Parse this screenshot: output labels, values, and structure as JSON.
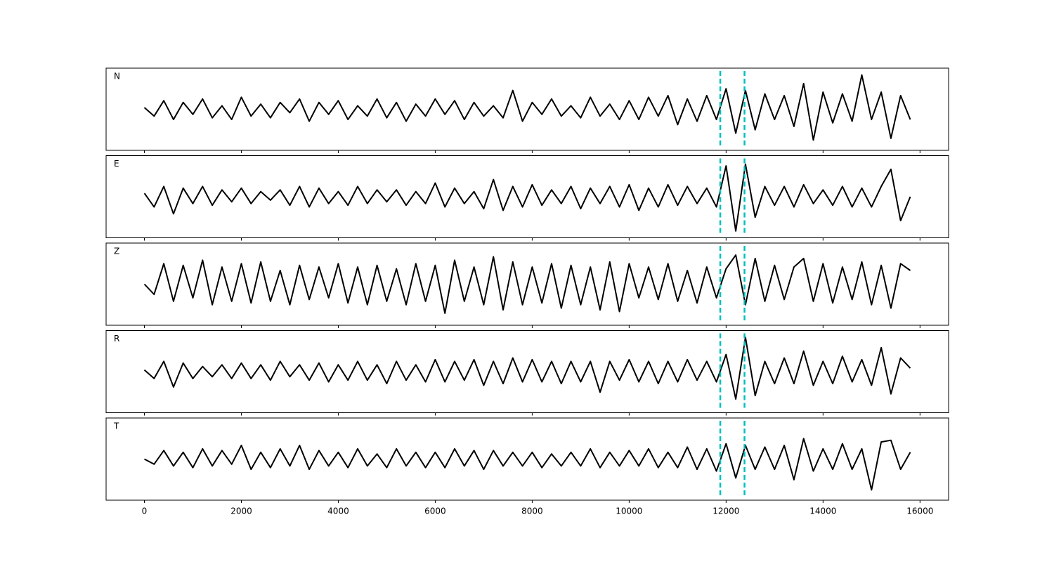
{
  "chart_data": {
    "type": "line",
    "layout": "stacked",
    "x": [
      0,
      200,
      400,
      600,
      800,
      1000,
      1200,
      1400,
      1600,
      1800,
      2000,
      2200,
      2400,
      2600,
      2800,
      3000,
      3200,
      3400,
      3600,
      3800,
      4000,
      4200,
      4400,
      4600,
      4800,
      5000,
      5200,
      5400,
      5600,
      5800,
      6000,
      6200,
      6400,
      6600,
      6800,
      7000,
      7200,
      7400,
      7600,
      7800,
      8000,
      8200,
      8400,
      8600,
      8800,
      9000,
      9200,
      9400,
      9600,
      9800,
      10000,
      10200,
      10400,
      10600,
      10800,
      11000,
      11200,
      11400,
      11600,
      11800,
      12000,
      12200,
      12400,
      12600,
      12800,
      13000,
      13200,
      13400,
      13600,
      13800,
      14000,
      14200,
      14400,
      14600,
      14800,
      15000,
      15200,
      15400,
      15600,
      15800
    ],
    "xlim": [
      -790,
      16590
    ],
    "xticks": [
      0,
      2000,
      4000,
      6000,
      8000,
      10000,
      12000,
      14000,
      16000
    ],
    "ylim": [
      -1.2,
      1.2
    ],
    "vlines": [
      11880,
      12380
    ],
    "vline_color": "#00bfbf",
    "series": [
      {
        "name": "N",
        "color": "#000000",
        "values": [
          0.05,
          -0.2,
          0.25,
          -0.3,
          0.2,
          -0.15,
          0.3,
          -0.25,
          0.1,
          -0.3,
          0.35,
          -0.2,
          0.15,
          -0.25,
          0.2,
          -0.1,
          0.3,
          -0.35,
          0.2,
          -0.15,
          0.25,
          -0.3,
          0.1,
          -0.2,
          0.3,
          -0.25,
          0.2,
          -0.35,
          0.15,
          -0.2,
          0.3,
          -0.15,
          0.25,
          -0.3,
          0.2,
          -0.2,
          0.1,
          -0.25,
          0.55,
          -0.35,
          0.2,
          -0.15,
          0.3,
          -0.2,
          0.1,
          -0.25,
          0.35,
          -0.2,
          0.15,
          -0.3,
          0.25,
          -0.3,
          0.35,
          -0.2,
          0.4,
          -0.45,
          0.3,
          -0.35,
          0.4,
          -0.3,
          0.6,
          -0.7,
          0.55,
          -0.6,
          0.45,
          -0.3,
          0.4,
          -0.5,
          0.75,
          -0.9,
          0.5,
          -0.4,
          0.45,
          -0.35,
          1.0,
          -0.3,
          0.5,
          -0.85,
          0.4,
          -0.3
        ]
      },
      {
        "name": "E",
        "color": "#000000",
        "values": [
          0.1,
          -0.3,
          0.3,
          -0.5,
          0.25,
          -0.2,
          0.3,
          -0.25,
          0.2,
          -0.15,
          0.25,
          -0.2,
          0.15,
          -0.1,
          0.2,
          -0.25,
          0.3,
          -0.3,
          0.25,
          -0.2,
          0.15,
          -0.25,
          0.3,
          -0.2,
          0.2,
          -0.15,
          0.2,
          -0.25,
          0.15,
          -0.2,
          0.4,
          -0.3,
          0.25,
          -0.2,
          0.15,
          -0.35,
          0.5,
          -0.4,
          0.3,
          -0.3,
          0.35,
          -0.25,
          0.2,
          -0.2,
          0.3,
          -0.35,
          0.25,
          -0.2,
          0.3,
          -0.3,
          0.35,
          -0.4,
          0.25,
          -0.3,
          0.35,
          -0.25,
          0.3,
          -0.2,
          0.25,
          -0.3,
          0.9,
          -1.0,
          0.95,
          -0.6,
          0.3,
          -0.25,
          0.3,
          -0.3,
          0.35,
          -0.2,
          0.2,
          -0.25,
          0.3,
          -0.3,
          0.25,
          -0.3,
          0.3,
          0.8,
          -0.7,
          0.0
        ]
      },
      {
        "name": "Z",
        "color": "#000000",
        "values": [
          0.0,
          -0.3,
          0.6,
          -0.5,
          0.55,
          -0.4,
          0.7,
          -0.6,
          0.5,
          -0.5,
          0.6,
          -0.55,
          0.65,
          -0.5,
          0.4,
          -0.6,
          0.55,
          -0.45,
          0.5,
          -0.4,
          0.6,
          -0.55,
          0.5,
          -0.6,
          0.55,
          -0.5,
          0.45,
          -0.6,
          0.6,
          -0.5,
          0.55,
          -0.85,
          0.7,
          -0.5,
          0.5,
          -0.6,
          0.8,
          -0.75,
          0.65,
          -0.6,
          0.5,
          -0.55,
          0.6,
          -0.7,
          0.55,
          -0.6,
          0.5,
          -0.75,
          0.65,
          -0.8,
          0.6,
          -0.4,
          0.5,
          -0.45,
          0.6,
          -0.5,
          0.4,
          -0.55,
          0.5,
          -0.4,
          0.45,
          0.85,
          -0.6,
          0.75,
          -0.5,
          0.55,
          -0.45,
          0.5,
          0.75,
          -0.5,
          0.6,
          -0.55,
          0.5,
          -0.45,
          0.65,
          -0.6,
          0.55,
          -0.7,
          0.6,
          0.4
        ]
      },
      {
        "name": "R",
        "color": "#000000",
        "values": [
          0.05,
          -0.2,
          0.3,
          -0.45,
          0.25,
          -0.2,
          0.15,
          -0.15,
          0.2,
          -0.2,
          0.25,
          -0.2,
          0.2,
          -0.25,
          0.3,
          -0.15,
          0.2,
          -0.25,
          0.25,
          -0.3,
          0.2,
          -0.25,
          0.3,
          -0.25,
          0.2,
          -0.35,
          0.3,
          -0.25,
          0.2,
          -0.3,
          0.35,
          -0.3,
          0.3,
          -0.25,
          0.35,
          -0.4,
          0.3,
          -0.35,
          0.4,
          -0.3,
          0.35,
          -0.3,
          0.3,
          -0.35,
          0.3,
          -0.3,
          0.3,
          -0.6,
          0.3,
          -0.25,
          0.35,
          -0.3,
          0.3,
          -0.35,
          0.3,
          -0.3,
          0.35,
          -0.25,
          0.3,
          -0.3,
          0.5,
          -0.8,
          1.0,
          -0.7,
          0.3,
          -0.35,
          0.4,
          -0.35,
          0.6,
          -0.4,
          0.3,
          -0.35,
          0.45,
          -0.3,
          0.35,
          -0.4,
          0.7,
          -0.65,
          0.4,
          0.1
        ]
      },
      {
        "name": "T",
        "color": "#000000",
        "values": [
          0.0,
          -0.15,
          0.25,
          -0.2,
          0.2,
          -0.25,
          0.3,
          -0.2,
          0.25,
          -0.15,
          0.4,
          -0.3,
          0.2,
          -0.25,
          0.3,
          -0.2,
          0.4,
          -0.3,
          0.25,
          -0.2,
          0.2,
          -0.25,
          0.3,
          -0.2,
          0.15,
          -0.25,
          0.3,
          -0.2,
          0.2,
          -0.25,
          0.2,
          -0.25,
          0.3,
          -0.2,
          0.25,
          -0.3,
          0.25,
          -0.2,
          0.2,
          -0.2,
          0.2,
          -0.25,
          0.15,
          -0.2,
          0.2,
          -0.2,
          0.3,
          -0.25,
          0.2,
          -0.2,
          0.25,
          -0.2,
          0.3,
          -0.25,
          0.2,
          -0.25,
          0.35,
          -0.3,
          0.3,
          -0.35,
          0.45,
          -0.55,
          0.4,
          -0.3,
          0.35,
          -0.3,
          0.4,
          -0.6,
          0.6,
          -0.35,
          0.3,
          -0.3,
          0.45,
          -0.3,
          0.3,
          -0.9,
          0.5,
          0.55,
          -0.3,
          0.2
        ]
      }
    ]
  }
}
